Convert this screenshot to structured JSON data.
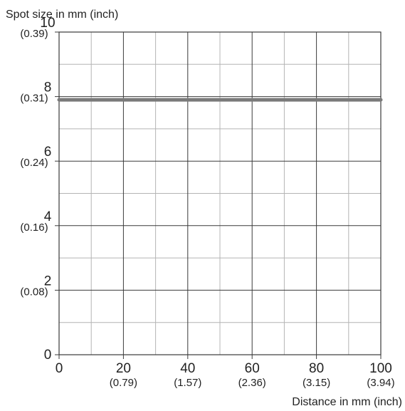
{
  "chart_data": {
    "type": "line",
    "ylabel": "Spot size in mm (inch)",
    "xlabel": "Distance in mm (inch)",
    "xlim": [
      0,
      100
    ],
    "ylim": [
      0,
      10
    ],
    "x_ticks": [
      {
        "value": 0,
        "label": "0",
        "sub": ""
      },
      {
        "value": 20,
        "label": "20",
        "sub": "(0.79)"
      },
      {
        "value": 40,
        "label": "40",
        "sub": "(1.57)"
      },
      {
        "value": 60,
        "label": "60",
        "sub": "(2.36)"
      },
      {
        "value": 80,
        "label": "80",
        "sub": "(3.15)"
      },
      {
        "value": 100,
        "label": "100",
        "sub": "(3.94)"
      }
    ],
    "y_ticks": [
      {
        "value": 0,
        "label": "0",
        "sub": ""
      },
      {
        "value": 2,
        "label": "2",
        "sub": "(0.08)"
      },
      {
        "value": 4,
        "label": "4",
        "sub": "(0.16)"
      },
      {
        "value": 6,
        "label": "6",
        "sub": "(0.24)"
      },
      {
        "value": 8,
        "label": "8",
        "sub": "(0.31)"
      },
      {
        "value": 10,
        "label": "10",
        "sub": "(0.39)"
      }
    ],
    "minor_grid_step": {
      "x": 10,
      "y": 1
    },
    "grid": true,
    "series": [
      {
        "x": [
          0,
          100
        ],
        "y": [
          7.9,
          7.9
        ],
        "color": "#7a7a7a"
      }
    ],
    "colors": {
      "major_grid": "#3a3a3a",
      "minor_grid": "#b4b4b4",
      "line": "#7a7a7a",
      "text": "#222222"
    }
  }
}
